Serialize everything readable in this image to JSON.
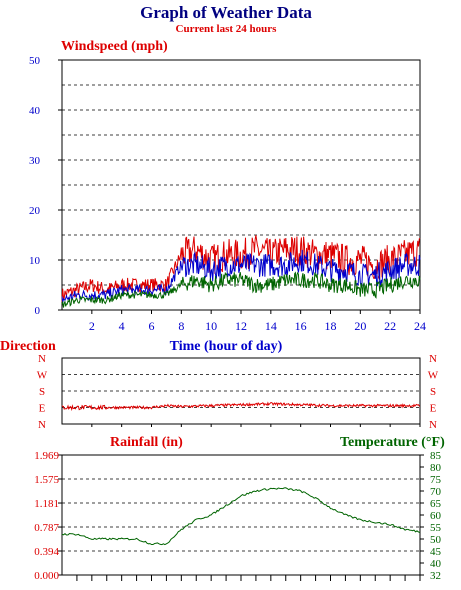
{
  "header": {
    "title": "Graph of Weather Data",
    "subtitle": "Current last 24 hours"
  },
  "colors": {
    "title": "#000080",
    "red": "#dd0000",
    "blue": "#0000cc",
    "green": "#006400",
    "grid": "#000000"
  },
  "chart_data": [
    {
      "type": "line",
      "ylabel": "Windspeed (mph)",
      "xlabel": "Time (hour of day)",
      "xlim": [
        0,
        24
      ],
      "ylim": [
        0,
        50
      ],
      "x_ticks": [
        "2",
        "4",
        "6",
        "8",
        "10",
        "12",
        "14",
        "16",
        "18",
        "20",
        "22",
        "24"
      ],
      "y_ticks": [
        "0",
        "10",
        "20",
        "30",
        "40",
        "50"
      ],
      "grid": true,
      "x": [
        0,
        1,
        2,
        3,
        4,
        5,
        6,
        7,
        8,
        9,
        10,
        11,
        12,
        13,
        14,
        15,
        16,
        17,
        18,
        19,
        20,
        21,
        22,
        23,
        24
      ],
      "series": [
        {
          "color": "#dd0000",
          "values": [
            3,
            4,
            5,
            4,
            5,
            5,
            5,
            5,
            11,
            12,
            10,
            11,
            11,
            12,
            11,
            12,
            12,
            11,
            11,
            10,
            10,
            9,
            10,
            11,
            12
          ]
        },
        {
          "color": "#0000cc",
          "values": [
            2,
            3,
            3,
            3,
            4,
            4,
            4,
            4,
            9,
            9,
            8,
            9,
            9,
            9,
            9,
            9,
            10,
            9,
            8,
            8,
            7,
            7,
            8,
            9,
            9
          ]
        },
        {
          "color": "#006400",
          "values": [
            1,
            2,
            2,
            2,
            3,
            3,
            3,
            3,
            5,
            6,
            5,
            6,
            6,
            5,
            5,
            6,
            6,
            6,
            5,
            5,
            4,
            4,
            5,
            6,
            6
          ]
        }
      ]
    },
    {
      "type": "line",
      "ylabel": "Direction",
      "xlim": [
        0,
        24
      ],
      "y_ticks": [
        "N",
        "E",
        "S",
        "W",
        "N"
      ],
      "grid": true,
      "x": [
        0,
        2,
        4,
        6,
        7,
        8,
        10,
        12,
        14,
        16,
        18,
        20,
        22,
        24
      ],
      "series": [
        {
          "color": "#dd0000",
          "values": [
            90,
            90,
            90,
            90,
            100,
            95,
            100,
            105,
            110,
            105,
            100,
            100,
            100,
            100
          ]
        }
      ]
    },
    {
      "type": "line",
      "ylabel": "Rainfall (in)",
      "y2label": "Temperature (°F)",
      "xlim": [
        0,
        24
      ],
      "ylim": [
        0,
        1.969
      ],
      "y2lim": [
        32,
        85
      ],
      "y_ticks": [
        "0.000",
        "0.394",
        "0.787",
        "1.181",
        "1.575",
        "1.969"
      ],
      "y2_ticks": [
        "32",
        "40",
        "45",
        "50",
        "55",
        "60",
        "65",
        "70",
        "75",
        "80",
        "85"
      ],
      "grid": true,
      "x": [
        0,
        1,
        2,
        3,
        4,
        5,
        6,
        7,
        8,
        9,
        10,
        11,
        12,
        13,
        14,
        15,
        16,
        17,
        18,
        19,
        20,
        21,
        22,
        23,
        24
      ],
      "series": [
        {
          "color": "#006400",
          "axis": "y2",
          "values": [
            52,
            52,
            50,
            50,
            50,
            50,
            48,
            48,
            54,
            58,
            60,
            64,
            68,
            70,
            71,
            71,
            70,
            67,
            63,
            60,
            58,
            57,
            56,
            54,
            53
          ]
        }
      ]
    }
  ]
}
